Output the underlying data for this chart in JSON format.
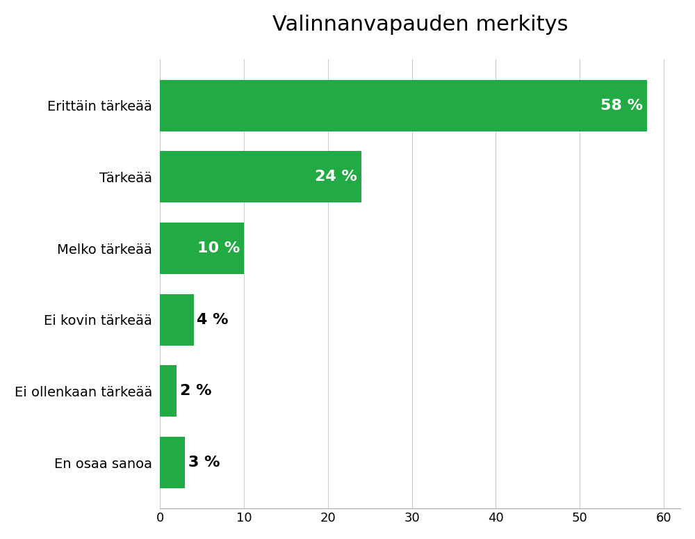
{
  "title": "Valinnanvapauden merkitys",
  "categories": [
    "En osaa sanoa",
    "Ei ollenkaan tärkeää",
    "Ei kovin tärkeää",
    "Melko tärkeää",
    "Tärkeää",
    "Erittäin tärkeää"
  ],
  "values": [
    3,
    2,
    4,
    10,
    24,
    58
  ],
  "labels": [
    "3 %",
    "2 %",
    "4 %",
    "10 %",
    "24 %",
    "58 %"
  ],
  "bar_color": "#22aa44",
  "label_color_inside": "#ffffff",
  "label_color_outside": "#000000",
  "title_fontsize": 22,
  "label_fontsize": 16,
  "ytick_fontsize": 14,
  "xtick_fontsize": 13,
  "xlim": [
    0,
    62
  ],
  "xticks": [
    0,
    10,
    20,
    30,
    40,
    50,
    60
  ],
  "background_color": "#ffffff",
  "grid_color": "#cccccc",
  "inside_threshold": 7,
  "bar_height": 0.72
}
